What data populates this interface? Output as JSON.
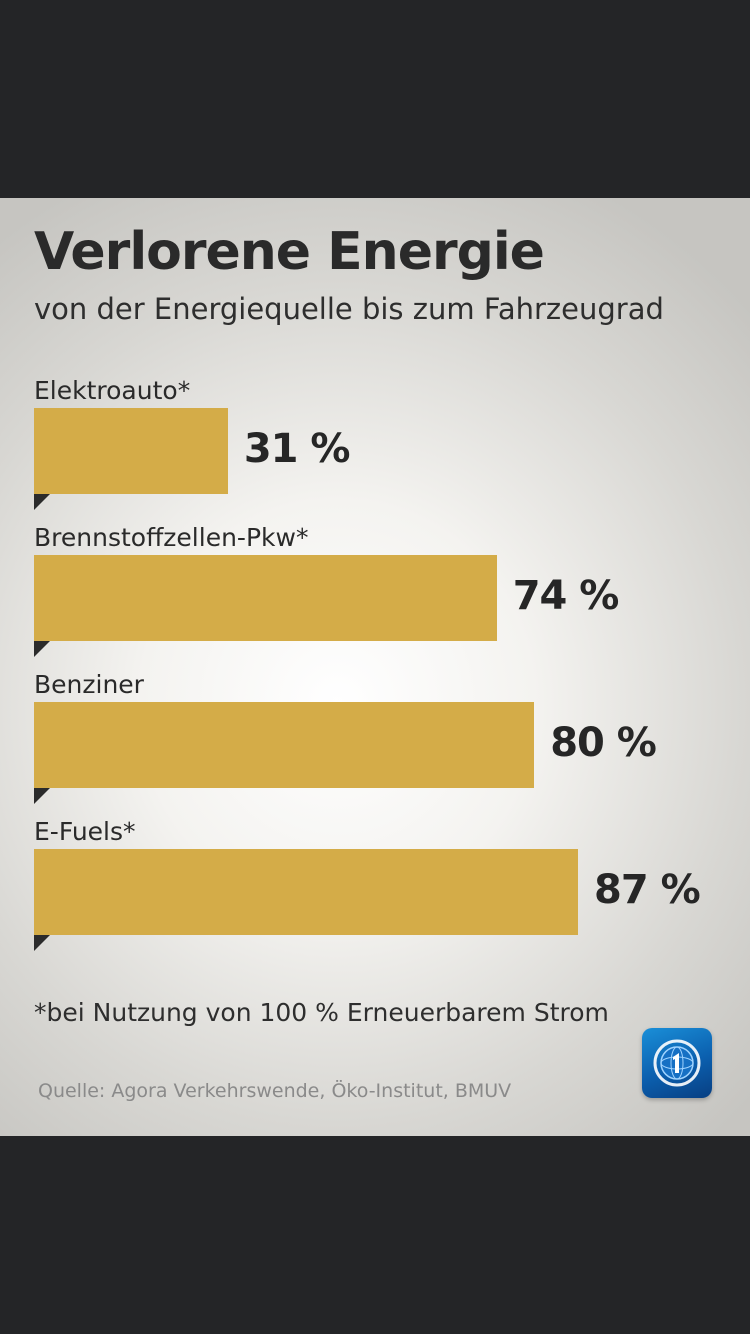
{
  "chart_data": {
    "type": "bar",
    "orientation": "horizontal",
    "title": "Verlorene Energie",
    "subtitle": "von der Energiequelle bis zum Fahrzeugrad",
    "categories": [
      "Elektroauto*",
      "Brennstoffzellen-Pkw*",
      "Benziner",
      "E-Fuels*"
    ],
    "values": [
      31,
      74,
      80,
      87
    ],
    "value_labels": [
      "31 %",
      "74 %",
      "80 %",
      "87 %"
    ],
    "unit": "%",
    "bar_color": "#d4ac48",
    "footnote": "*bei Nutzung von 100 % Erneuerbarem Strom",
    "source": "Quelle: Agora Verkehrswende, Öko-Institut, BMUV"
  },
  "logo": {
    "icon": "tagesschau-logo-icon"
  }
}
